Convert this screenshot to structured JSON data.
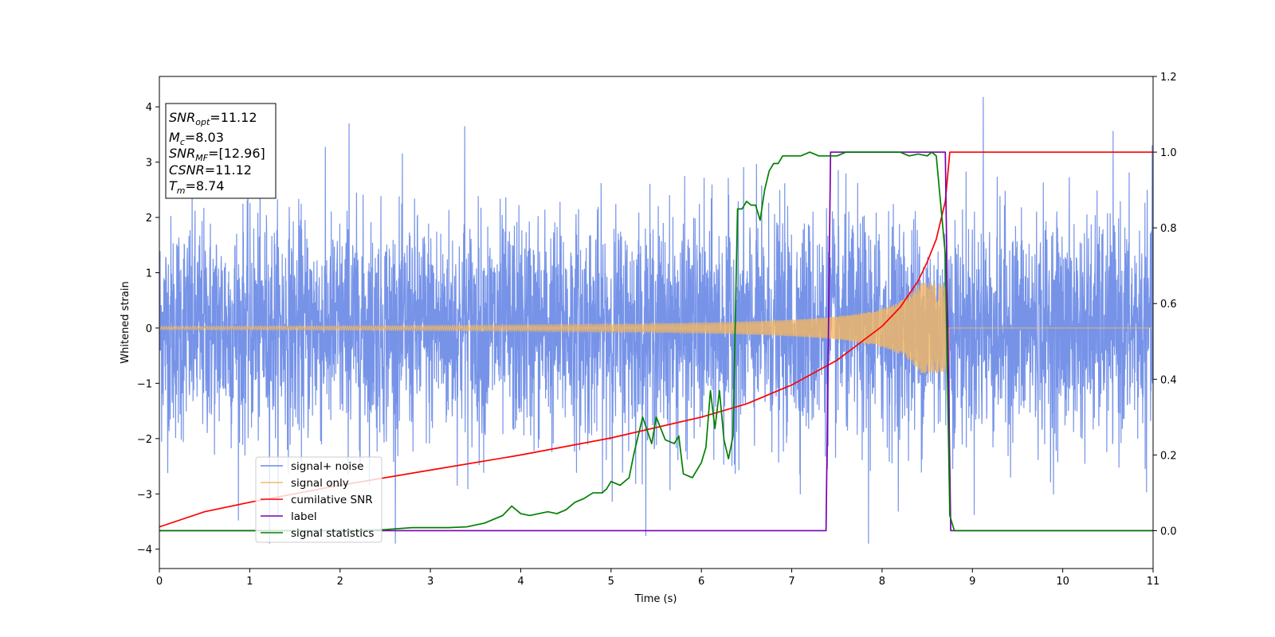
{
  "chart_data": {
    "type": "line",
    "xlabel": "Time (s)",
    "ylabel": "Whitened strain",
    "xlim": [
      0,
      11
    ],
    "ylim_left": [
      -4.35,
      4.55
    ],
    "ylim_right": [
      -0.1,
      1.2
    ],
    "x_ticks": [
      "0",
      "1",
      "2",
      "3",
      "4",
      "5",
      "6",
      "7",
      "8",
      "9",
      "10",
      "11"
    ],
    "y_ticks_left": [
      "−4",
      "−3",
      "−2",
      "−1",
      "0",
      "1",
      "2",
      "3",
      "4"
    ],
    "y_ticks_right": [
      "0.0",
      "0.2",
      "0.4",
      "0.6",
      "0.8",
      "1.0",
      "1.2"
    ],
    "grid": false,
    "legend_position": "lower-left",
    "legend": [
      "signal+ noise",
      "signal only",
      "cumilative SNR",
      "label",
      "signal statistics"
    ],
    "info_box": {
      "snr_opt": "=11.12",
      "mc": "=8.03",
      "snr_mf": "=[12.96]",
      "csnr": "=11.12",
      "tm": "=8.74"
    },
    "series": [
      {
        "name": "signal+ noise",
        "axis": "left",
        "color": "#6a8ae6",
        "description_range": [
          -3.9,
          4.2
        ],
        "noise_sigma": 1.0,
        "notable_peaks": [
          [
            1.22,
            -3.9
          ],
          [
            2.1,
            3.7
          ],
          [
            3.38,
            3.65
          ],
          [
            7.85,
            -3.95
          ],
          [
            9.12,
            4.18
          ]
        ]
      },
      {
        "name": "signal only",
        "axis": "left",
        "color": "#f5b860",
        "chirp_start_amplitude": 0.03,
        "chirp_peak_time": 8.74,
        "chirp_peak_amplitude": 0.82,
        "after_merger": 0.0
      },
      {
        "name": "cumilative SNR",
        "axis": "right",
        "color": "#ff0000",
        "x": [
          0,
          0.5,
          1,
          2,
          3,
          4,
          5,
          6,
          6.5,
          7,
          7.5,
          8,
          8.2,
          8.4,
          8.5,
          8.6,
          8.7,
          8.75,
          11
        ],
        "y": [
          0.01,
          0.05,
          0.075,
          0.12,
          0.16,
          0.2,
          0.245,
          0.3,
          0.335,
          0.385,
          0.45,
          0.54,
          0.59,
          0.66,
          0.71,
          0.77,
          0.87,
          1.0,
          1.0
        ]
      },
      {
        "name": "label",
        "axis": "right",
        "color": "#7b00b0",
        "x": [
          0,
          7.38,
          7.43,
          8.7,
          8.76,
          11
        ],
        "y": [
          0,
          0,
          1.0,
          1.0,
          0,
          0
        ]
      },
      {
        "name": "signal statistics",
        "axis": "right",
        "color": "#008000",
        "x": [
          0,
          0.5,
          1,
          1.5,
          2,
          2.5,
          2.8,
          3.2,
          3.4,
          3.6,
          3.7,
          3.8,
          3.9,
          4.0,
          4.1,
          4.2,
          4.3,
          4.4,
          4.5,
          4.6,
          4.7,
          4.8,
          4.9,
          4.95,
          5.0,
          5.1,
          5.2,
          5.25,
          5.35,
          5.45,
          5.5,
          5.6,
          5.7,
          5.75,
          5.8,
          5.9,
          6.0,
          6.05,
          6.1,
          6.15,
          6.2,
          6.25,
          6.3,
          6.35,
          6.4,
          6.45,
          6.5,
          6.55,
          6.6,
          6.65,
          6.7,
          6.75,
          6.8,
          6.85,
          6.9,
          7.0,
          7.1,
          7.2,
          7.3,
          7.4,
          7.5,
          7.6,
          7.7,
          7.8,
          8.0,
          8.2,
          8.3,
          8.4,
          8.5,
          8.55,
          8.6,
          8.7,
          8.75,
          8.8,
          8.85,
          8.9,
          9.0,
          10,
          11
        ],
        "y": [
          0,
          0,
          0,
          0,
          0,
          0.003,
          0.008,
          0.008,
          0.01,
          0.02,
          0.03,
          0.04,
          0.065,
          0.045,
          0.04,
          0.045,
          0.05,
          0.045,
          0.055,
          0.075,
          0.085,
          0.1,
          0.1,
          0.11,
          0.13,
          0.12,
          0.14,
          0.2,
          0.3,
          0.23,
          0.3,
          0.24,
          0.23,
          0.25,
          0.15,
          0.14,
          0.18,
          0.22,
          0.37,
          0.27,
          0.37,
          0.24,
          0.19,
          0.25,
          0.85,
          0.85,
          0.87,
          0.86,
          0.86,
          0.82,
          0.9,
          0.95,
          0.97,
          0.97,
          0.99,
          0.99,
          0.99,
          1.0,
          0.99,
          0.99,
          0.99,
          1.0,
          1.0,
          1.0,
          1.0,
          1.0,
          0.99,
          0.995,
          0.99,
          1.0,
          0.99,
          0.73,
          0.04,
          0.0,
          0.0,
          0.0,
          0.0,
          0.0,
          0.0
        ]
      }
    ]
  }
}
